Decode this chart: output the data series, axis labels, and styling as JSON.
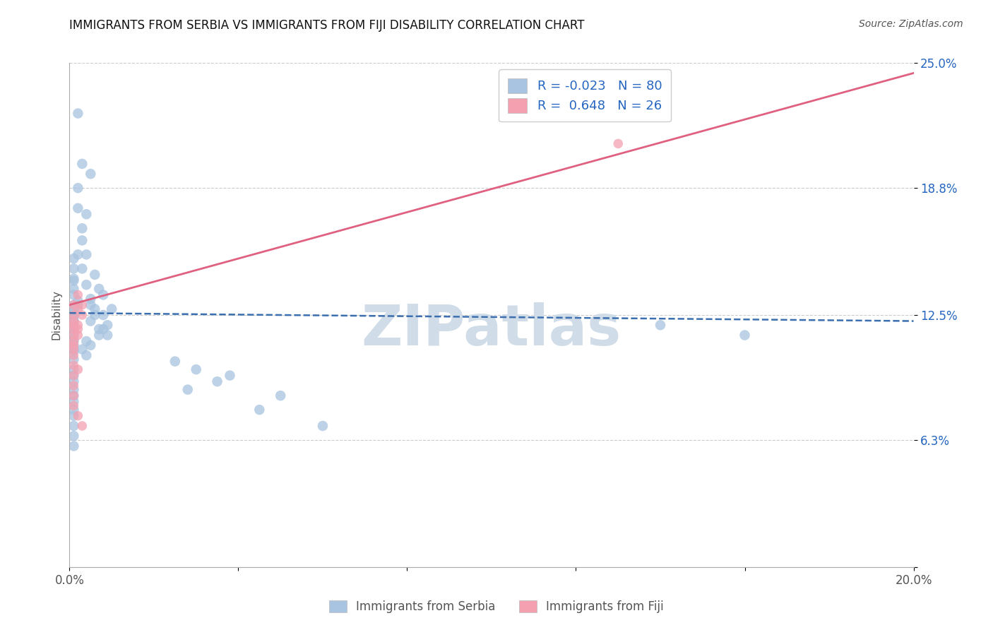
{
  "title": "IMMIGRANTS FROM SERBIA VS IMMIGRANTS FROM FIJI DISABILITY CORRELATION CHART",
  "source": "Source: ZipAtlas.com",
  "ylabel": "Disability",
  "xlim": [
    0.0,
    0.2
  ],
  "ylim": [
    0.0,
    0.25
  ],
  "ytick_positions": [
    0.0,
    0.063,
    0.125,
    0.188,
    0.25
  ],
  "ytick_labels": [
    "",
    "6.3%",
    "12.5%",
    "18.8%",
    "25.0%"
  ],
  "xtick_positions": [
    0.0,
    0.04,
    0.08,
    0.12,
    0.16,
    0.2
  ],
  "xtick_labels": [
    "0.0%",
    "",
    "",
    "",
    "",
    "20.0%"
  ],
  "serbia_R": "-0.023",
  "serbia_N": "80",
  "fiji_R": "0.648",
  "fiji_N": "26",
  "serbia_color": "#a8c4e0",
  "fiji_color": "#f4a0b0",
  "serbia_line_color": "#3b6faf",
  "fiji_line_color": "#e06080",
  "watermark_text": "ZIPatlas",
  "watermark_color": "#d0dce8",
  "serbia_line_x": [
    0.0,
    0.2
  ],
  "serbia_line_y": [
    0.126,
    0.122
  ],
  "fiji_line_x": [
    0.0,
    0.2
  ],
  "fiji_line_y": [
    0.13,
    0.245
  ],
  "serbia_x": [
    0.002,
    0.003,
    0.004,
    0.002,
    0.005,
    0.003,
    0.004,
    0.003,
    0.002,
    0.003,
    0.001,
    0.002,
    0.001,
    0.002,
    0.001,
    0.001,
    0.002,
    0.001,
    0.001,
    0.001,
    0.001,
    0.001,
    0.001,
    0.001,
    0.001,
    0.001,
    0.001,
    0.001,
    0.001,
    0.001,
    0.001,
    0.001,
    0.001,
    0.001,
    0.001,
    0.001,
    0.001,
    0.001,
    0.001,
    0.001,
    0.001,
    0.001,
    0.001,
    0.001,
    0.001,
    0.001,
    0.001,
    0.001,
    0.001,
    0.001,
    0.007,
    0.006,
    0.005,
    0.008,
    0.006,
    0.007,
    0.005,
    0.009,
    0.004,
    0.005,
    0.01,
    0.008,
    0.009,
    0.007,
    0.006,
    0.008,
    0.005,
    0.004,
    0.003,
    0.004,
    0.038,
    0.03,
    0.025,
    0.035,
    0.028,
    0.05,
    0.045,
    0.06,
    0.14,
    0.16
  ],
  "serbia_y": [
    0.225,
    0.2,
    0.175,
    0.188,
    0.195,
    0.168,
    0.155,
    0.162,
    0.178,
    0.148,
    0.143,
    0.155,
    0.138,
    0.13,
    0.135,
    0.128,
    0.132,
    0.142,
    0.148,
    0.153,
    0.125,
    0.122,
    0.118,
    0.127,
    0.13,
    0.12,
    0.115,
    0.112,
    0.108,
    0.118,
    0.122,
    0.126,
    0.128,
    0.124,
    0.117,
    0.113,
    0.11,
    0.107,
    0.103,
    0.098,
    0.095,
    0.092,
    0.088,
    0.085,
    0.082,
    0.078,
    0.075,
    0.07,
    0.065,
    0.06,
    0.138,
    0.145,
    0.13,
    0.125,
    0.128,
    0.118,
    0.122,
    0.115,
    0.14,
    0.133,
    0.128,
    0.135,
    0.12,
    0.115,
    0.125,
    0.118,
    0.11,
    0.105,
    0.108,
    0.112,
    0.095,
    0.098,
    0.102,
    0.092,
    0.088,
    0.085,
    0.078,
    0.07,
    0.12,
    0.115
  ],
  "fiji_x": [
    0.001,
    0.001,
    0.001,
    0.001,
    0.002,
    0.001,
    0.001,
    0.001,
    0.002,
    0.002,
    0.003,
    0.003,
    0.002,
    0.001,
    0.002,
    0.001,
    0.001,
    0.001,
    0.001,
    0.001,
    0.001,
    0.002,
    0.001,
    0.002,
    0.003,
    0.13
  ],
  "fiji_y": [
    0.125,
    0.118,
    0.13,
    0.122,
    0.128,
    0.12,
    0.115,
    0.112,
    0.135,
    0.118,
    0.125,
    0.13,
    0.12,
    0.11,
    0.115,
    0.108,
    0.105,
    0.1,
    0.095,
    0.09,
    0.085,
    0.098,
    0.08,
    0.075,
    0.07,
    0.21
  ]
}
